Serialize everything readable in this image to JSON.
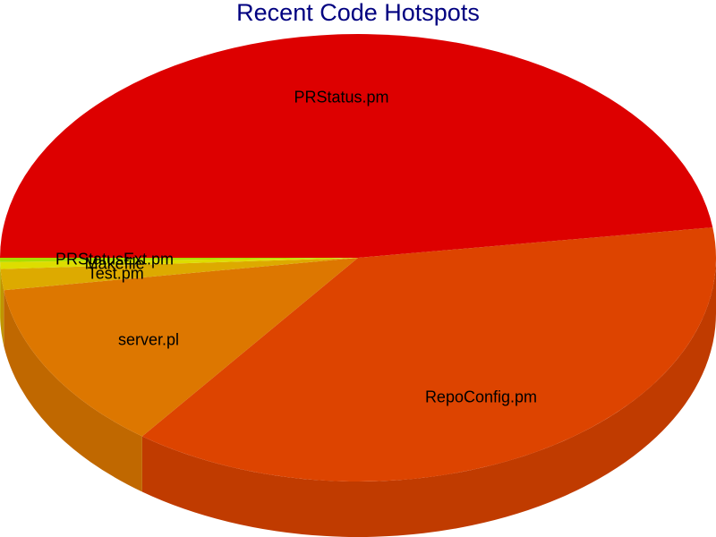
{
  "chart_data": {
    "type": "pie",
    "style": "3d",
    "title": "Recent Code Hotspots",
    "slices": [
      {
        "label": "PRStatus.pm",
        "value": 47.5,
        "color": "#dd0000"
      },
      {
        "label": "RepoConfig.pm",
        "value": 37.2,
        "color": "#dd4400"
      },
      {
        "label": "server.pl",
        "value": 12.3,
        "color": "#dd7700"
      },
      {
        "label": "Test.pm",
        "value": 1.5,
        "color": "#ddaa00"
      },
      {
        "label": "Makefile",
        "value": 0.5,
        "color": "#dddd00"
      },
      {
        "label": "PRStatusExt.pm",
        "value": 0.3,
        "color": "#aadd00"
      }
    ]
  }
}
